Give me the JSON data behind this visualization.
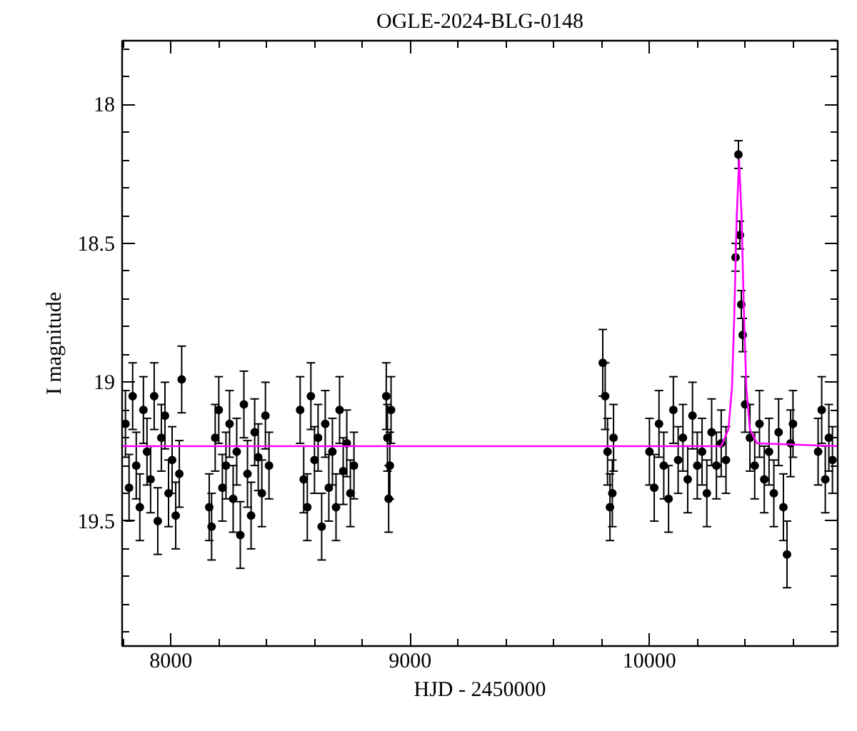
{
  "chart_data": {
    "type": "scatter",
    "title": "OGLE-2024-BLG-0148",
    "xlabel": "HJD - 2450000",
    "ylabel": "I magnitude",
    "xlim": [
      7796,
      10787
    ],
    "ylim": [
      19.95,
      17.77
    ],
    "xticks": [
      8000,
      9000,
      10000
    ],
    "yticks": [
      18,
      18.5,
      19,
      19.5
    ],
    "grid": false,
    "marker": "circle",
    "series": [
      {
        "color": "#000000",
        "x": [
          7810,
          7825,
          7840,
          7855,
          7870,
          7885,
          7900,
          7915,
          7930,
          7945,
          7960,
          7975,
          7990,
          8005,
          8020,
          8035,
          8045,
          8160,
          8170,
          8185,
          8200,
          8215,
          8230,
          8245,
          8260,
          8275,
          8290,
          8305,
          8320,
          8335,
          8350,
          8365,
          8380,
          8395,
          8410,
          8540,
          8555,
          8570,
          8585,
          8600,
          8615,
          8630,
          8645,
          8660,
          8675,
          8690,
          8705,
          8720,
          8735,
          8750,
          8765,
          8900,
          8905,
          8910,
          8915,
          8920,
          9805,
          9815,
          9825,
          9835,
          9845,
          9850,
          10000,
          10020,
          10040,
          10060,
          10080,
          10100,
          10120,
          10140,
          10160,
          10180,
          10200,
          10220,
          10240,
          10260,
          10280,
          10300,
          10320,
          10360,
          10372,
          10378,
          10384,
          10390,
          10400,
          10420,
          10440,
          10460,
          10480,
          10500,
          10520,
          10540,
          10560,
          10575,
          10590,
          10600,
          10705,
          10720,
          10735,
          10750,
          10765
        ],
        "values": [
          19.15,
          19.38,
          19.05,
          19.3,
          19.45,
          19.1,
          19.25,
          19.35,
          19.05,
          19.5,
          19.2,
          19.12,
          19.4,
          19.28,
          19.48,
          19.33,
          18.99,
          19.45,
          19.52,
          19.2,
          19.1,
          19.38,
          19.3,
          19.15,
          19.42,
          19.25,
          19.55,
          19.08,
          19.33,
          19.48,
          19.18,
          19.27,
          19.4,
          19.12,
          19.3,
          19.1,
          19.35,
          19.45,
          19.05,
          19.28,
          19.2,
          19.52,
          19.15,
          19.38,
          19.25,
          19.45,
          19.1,
          19.32,
          19.22,
          19.4,
          19.3,
          19.05,
          19.2,
          19.42,
          19.3,
          19.1,
          18.93,
          19.05,
          19.25,
          19.45,
          19.4,
          19.2,
          19.25,
          19.38,
          19.15,
          19.3,
          19.42,
          19.1,
          19.28,
          19.2,
          19.35,
          19.12,
          19.3,
          19.25,
          19.4,
          19.18,
          19.3,
          19.22,
          19.28,
          18.55,
          18.18,
          18.47,
          18.72,
          18.83,
          19.08,
          19.2,
          19.3,
          19.15,
          19.35,
          19.25,
          19.4,
          19.18,
          19.45,
          19.62,
          19.22,
          19.15,
          19.25,
          19.1,
          19.35,
          19.2,
          19.28
        ],
        "errors": [
          0.12,
          0.12,
          0.12,
          0.12,
          0.12,
          0.12,
          0.12,
          0.12,
          0.12,
          0.12,
          0.12,
          0.12,
          0.12,
          0.12,
          0.12,
          0.12,
          0.12,
          0.12,
          0.12,
          0.12,
          0.12,
          0.12,
          0.12,
          0.12,
          0.12,
          0.12,
          0.12,
          0.12,
          0.12,
          0.12,
          0.12,
          0.12,
          0.12,
          0.12,
          0.12,
          0.12,
          0.12,
          0.12,
          0.12,
          0.12,
          0.12,
          0.12,
          0.12,
          0.12,
          0.12,
          0.12,
          0.12,
          0.12,
          0.12,
          0.12,
          0.12,
          0.12,
          0.12,
          0.12,
          0.12,
          0.12,
          0.12,
          0.12,
          0.12,
          0.12,
          0.12,
          0.12,
          0.12,
          0.12,
          0.12,
          0.12,
          0.12,
          0.12,
          0.12,
          0.12,
          0.12,
          0.12,
          0.12,
          0.12,
          0.12,
          0.12,
          0.12,
          0.12,
          0.12,
          0.05,
          0.05,
          0.05,
          0.05,
          0.06,
          0.1,
          0.12,
          0.12,
          0.12,
          0.12,
          0.12,
          0.12,
          0.12,
          0.12,
          0.12,
          0.12,
          0.12,
          0.12,
          0.12,
          0.12,
          0.12,
          0.12
        ]
      },
      {
        "type": "line",
        "color": "#ff00ff",
        "marker": "none",
        "x": [
          7796,
          10300,
          10330,
          10345,
          10355,
          10365,
          10375,
          10385,
          10395,
          10405,
          10420,
          10450,
          10787
        ],
        "values": [
          19.23,
          19.23,
          19.17,
          19.02,
          18.75,
          18.4,
          18.2,
          18.4,
          18.75,
          19.02,
          19.17,
          19.22,
          19.23
        ]
      }
    ]
  }
}
